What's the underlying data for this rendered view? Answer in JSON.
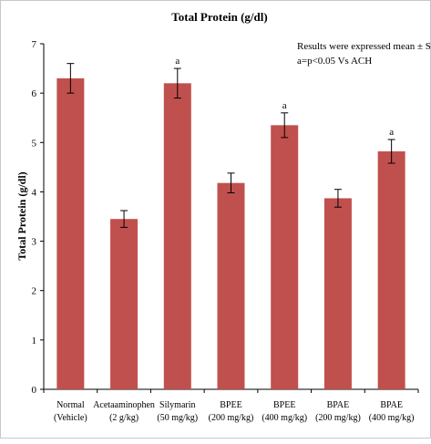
{
  "chart_data": {
    "type": "bar",
    "title": "Total Protein (g/dl)",
    "ylabel": "Total Protein (g/dl)",
    "xlabel": "",
    "ylim": [
      0,
      7
    ],
    "yticks": [
      "0",
      "1",
      "2",
      "3",
      "4",
      "5",
      "6",
      "7"
    ],
    "grid": false,
    "legend": "none",
    "bar_color": "#c0504d",
    "annotation": {
      "line1": "Results were expressed mean ± S.D",
      "line2": "a=p<0.05 Vs  ACH"
    },
    "categories": [
      {
        "name": "Normal",
        "sub": "(Vehicle)"
      },
      {
        "name": "Acetaaminophen",
        "sub": "(2 g/kg)"
      },
      {
        "name": "Silymarin",
        "sub": "(50 mg/kg)"
      },
      {
        "name": "BPEE",
        "sub": "(200 mg/kg)"
      },
      {
        "name": "BPEE",
        "sub": "(400 mg/kg)"
      },
      {
        "name": "BPAE",
        "sub": "(200 mg/kg)"
      },
      {
        "name": "BPAE",
        "sub": "(400 mg/kg)"
      }
    ],
    "values": [
      6.3,
      3.45,
      6.2,
      4.18,
      5.35,
      3.87,
      4.82
    ],
    "errors": [
      0.3,
      0.17,
      0.3,
      0.2,
      0.25,
      0.18,
      0.24
    ],
    "significance_labels": [
      "",
      "",
      "a",
      "",
      "a",
      "",
      "a"
    ]
  }
}
